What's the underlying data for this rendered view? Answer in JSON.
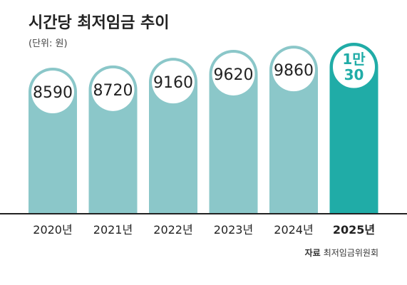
{
  "header": {
    "title": "시간당 최저임금 추이",
    "unit": "(단위: 원)"
  },
  "source": {
    "label": "자료",
    "text": "최저임금위원회"
  },
  "colors": {
    "bar": "#8bc7c9",
    "highlight": "#20aca7"
  },
  "chart_data": {
    "type": "bar",
    "title": "시간당 최저임금 추이",
    "xlabel": "",
    "ylabel": "",
    "categories": [
      "2020년",
      "2021년",
      "2022년",
      "2023년",
      "2024년",
      "2025년"
    ],
    "values": [
      8590,
      8720,
      9160,
      9620,
      9860,
      10030
    ],
    "data_labels": [
      "8590",
      "8720",
      "9160",
      "9620",
      "9860",
      "1만\n30"
    ],
    "highlight_index": 5,
    "ylim": [
      0,
      10030
    ],
    "grid": false,
    "legend": "none"
  }
}
